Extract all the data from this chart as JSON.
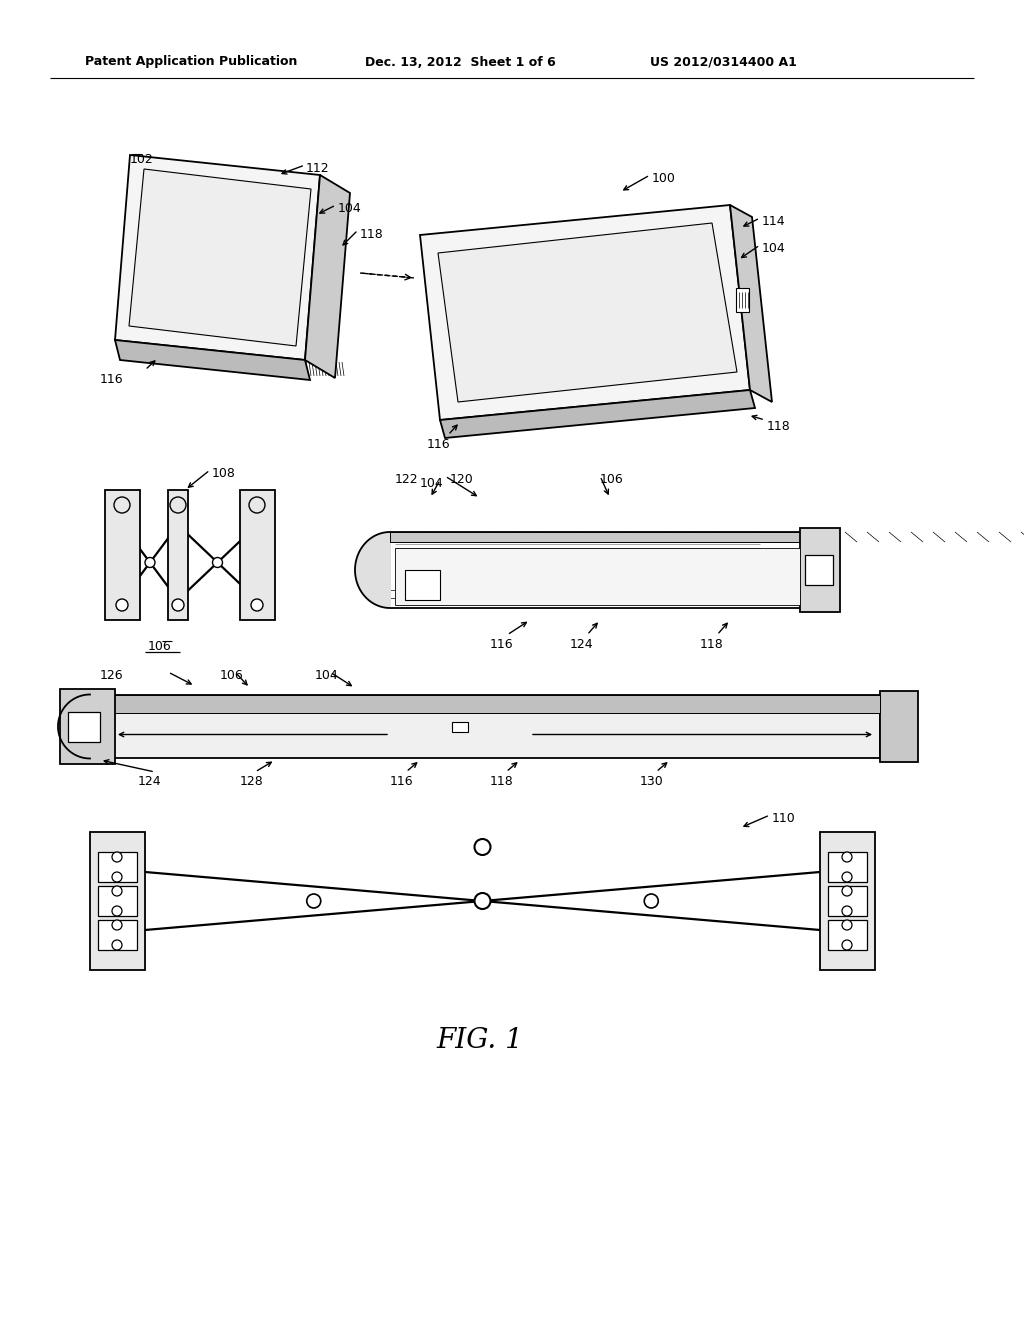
{
  "bg_color": "#ffffff",
  "line_color": "#000000",
  "header_left": "Patent Application Publication",
  "header_center": "Dec. 13, 2012  Sheet 1 of 6",
  "header_right": "US 2012/0314400 A1",
  "figure_label": "FIG. 1",
  "lw": 1.3,
  "tlw": 0.7
}
